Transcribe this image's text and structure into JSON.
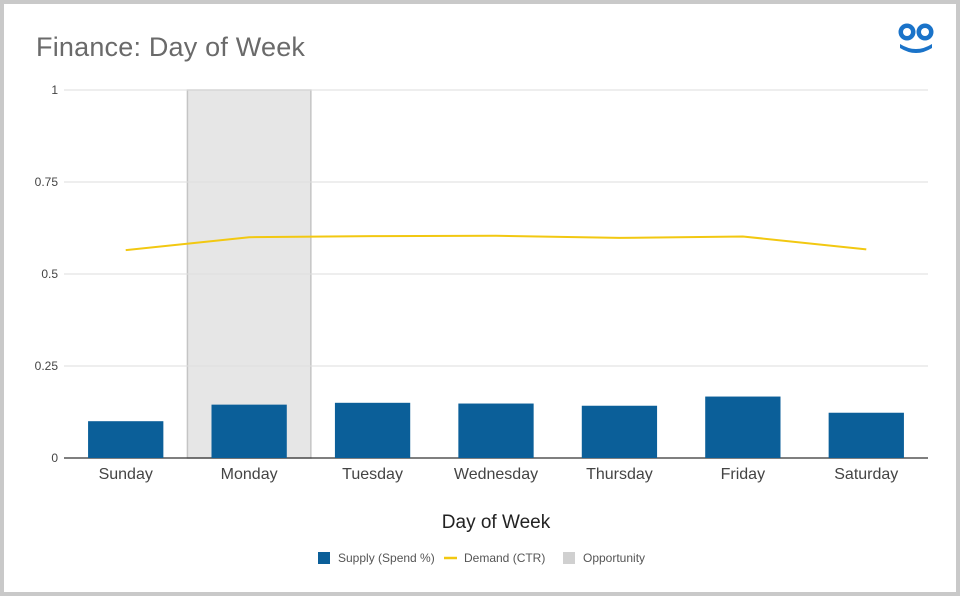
{
  "title": "Finance: Day of Week",
  "logo": {
    "icon": "goggle-eyes-logo-icon",
    "color": "#1a73c9"
  },
  "chart_data": {
    "type": "bar",
    "categories": [
      "Sunday",
      "Monday",
      "Tuesday",
      "Wednesday",
      "Thursday",
      "Friday",
      "Saturday"
    ],
    "series": [
      {
        "name": "Supply (Spend %)",
        "type": "bar",
        "color": "#0b5f99",
        "values": [
          0.1,
          0.145,
          0.15,
          0.148,
          0.142,
          0.167,
          0.123
        ]
      },
      {
        "name": "Demand (CTR)",
        "type": "line",
        "color": "#f2c811",
        "values": [
          0.565,
          0.6,
          0.603,
          0.604,
          0.598,
          0.602,
          0.567
        ]
      },
      {
        "name": "Opportunity",
        "type": "highlight",
        "color": "#e6e6e6",
        "categories": [
          "Monday"
        ]
      }
    ],
    "xlabel": "Day of Week",
    "ylabel": "",
    "ylim": [
      0,
      1
    ],
    "yticks": [
      "0",
      "0.25",
      "0.5",
      "0.75",
      "1"
    ],
    "ytick_values": [
      0,
      0.25,
      0.5,
      0.75,
      1
    ],
    "grid": true,
    "legend": "bottom"
  }
}
